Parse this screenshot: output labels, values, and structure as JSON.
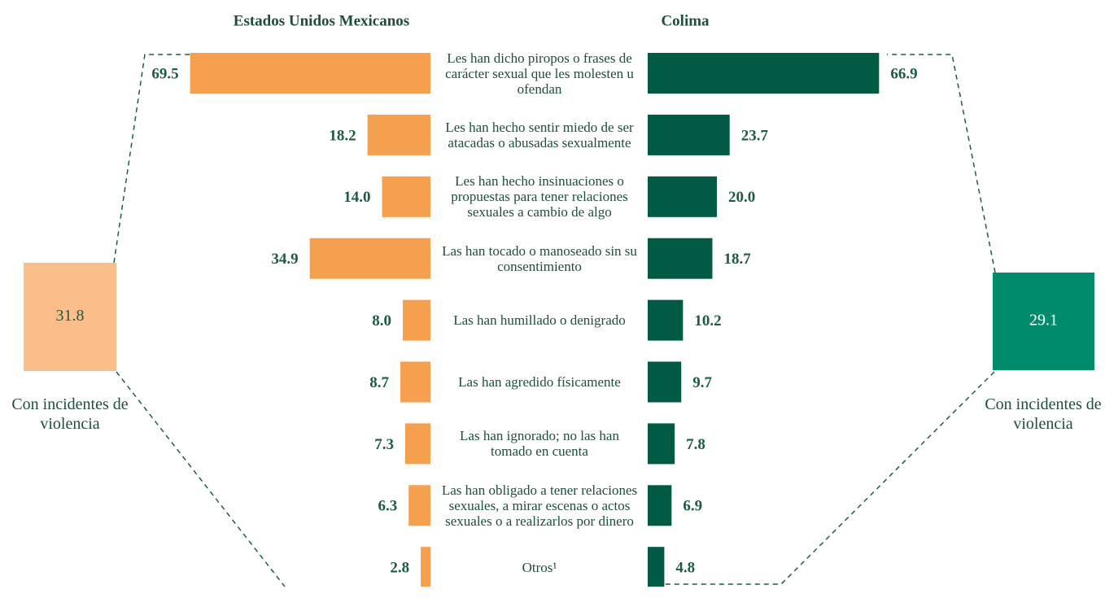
{
  "chart_data": {
    "type": "bar",
    "orientation": "horizontal",
    "categories": [
      "Les han dicho piropos o frases de carácter sexual que les molesten u ofendan",
      "Les han hecho sentir miedo de ser atacadas o abusadas sexualmente",
      "Les han hecho insinuaciones o propuestas para tener relaciones sexuales a cambio de algo",
      "Las han tocado o manoseado sin su consentimiento",
      "Las han humillado o denigrado",
      "Las han agredido físicamente",
      "Las han ignorado; no las han tomado en cuenta",
      "Las han obligado a tener relaciones sexuales, a mirar escenas o actos sexuales o a realizarlos por dinero",
      "Otros¹"
    ],
    "series": [
      {
        "name": "Estados Unidos Mexicanos",
        "color": "#f4a04e",
        "values": [
          69.5,
          18.2,
          14.0,
          34.9,
          8.0,
          8.7,
          7.3,
          6.3,
          2.8
        ],
        "value_labels": [
          "69.5",
          "18.2",
          "14.0",
          "34.9",
          "8.0",
          "8.7",
          "7.3",
          "6.3",
          "2.8"
        ],
        "total": 31.8,
        "total_color": "#f9be8a",
        "total_label": "Con incidentes de violencia"
      },
      {
        "name": "Colima",
        "color": "#005a44",
        "values": [
          66.9,
          23.7,
          20.0,
          18.7,
          10.2,
          9.7,
          7.8,
          6.9,
          4.8
        ],
        "value_labels": [
          "66.9",
          "23.7",
          "20.0",
          "18.7",
          "10.2",
          "9.7",
          "7.8",
          "6.9",
          "4.8"
        ],
        "total": 29.1,
        "total_color": "#008c6b",
        "total_label": "Con incidentes de violencia"
      }
    ]
  }
}
